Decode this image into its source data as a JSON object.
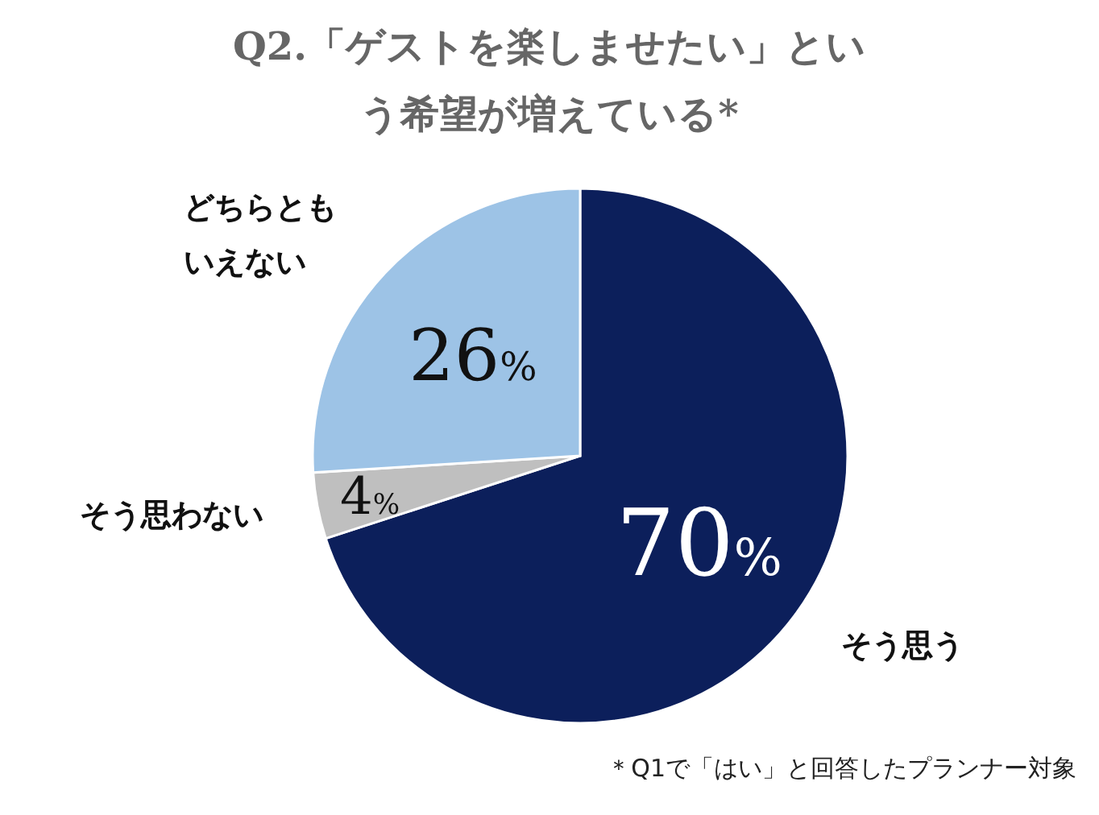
{
  "chart_data": {
    "type": "pie",
    "title": "Q2.「ゲストを楽しませたい」という希望が増えている*",
    "categories": [
      "そう思う",
      "そう思わない",
      "どちらともいえない"
    ],
    "values": [
      70,
      4,
      26
    ],
    "colors": [
      "#0c1f5b",
      "#bfbfbf",
      "#9dc3e6"
    ],
    "value_labels": [
      "70%",
      "4%",
      "26%"
    ],
    "annotations": [
      "＊Q1で「はい」と回答したプランナー対象"
    ]
  }
}
